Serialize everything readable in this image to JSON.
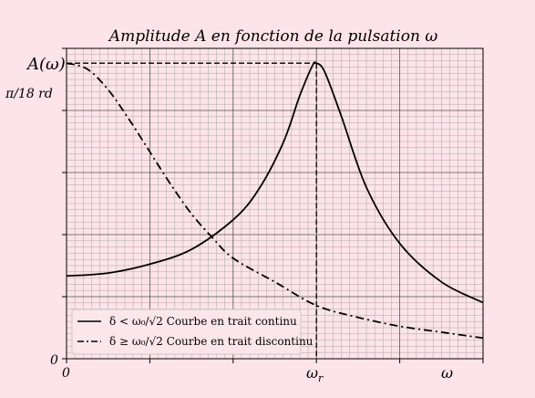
{
  "chart_data": {
    "type": "line",
    "title": "Amplitude A en fonction de la pulsation ω",
    "ylabel": "A(ω)",
    "xlabel": "ω",
    "y_reference_label": "π/18 rd",
    "y_origin_label": "0",
    "x_origin_label": "0",
    "x_resonance_label": "ω",
    "x_resonance_subscript": "r",
    "xlim": [
      0,
      5
    ],
    "ylim": [
      0,
      1.05
    ],
    "grid": true,
    "minor_grid": true,
    "legend_position": "bottom-left",
    "resonance": {
      "x": 3.0,
      "y": 1.0
    },
    "series": [
      {
        "name": "δ < ω₀/√2  Courbe en trait continu",
        "style": "solid",
        "x": [
          0,
          0.5,
          1.0,
          1.5,
          2.0,
          2.3,
          2.6,
          2.8,
          2.95,
          3.0,
          3.1,
          3.3,
          3.6,
          4.0,
          4.5,
          5.0
        ],
        "values": [
          0.28,
          0.29,
          0.32,
          0.37,
          0.47,
          0.57,
          0.73,
          0.89,
          0.99,
          1.0,
          0.97,
          0.82,
          0.58,
          0.39,
          0.26,
          0.19
        ]
      },
      {
        "name": "δ ≥ ω₀/√2  Courbe en trait discontinu",
        "style": "dashdot",
        "x": [
          0,
          0.25,
          0.5,
          0.75,
          1.0,
          1.25,
          1.5,
          1.75,
          2.0,
          2.5,
          3.0,
          3.5,
          4.0,
          4.5,
          5.0
        ],
        "values": [
          1.0,
          0.98,
          0.91,
          0.81,
          0.7,
          0.59,
          0.49,
          0.41,
          0.34,
          0.26,
          0.18,
          0.14,
          0.11,
          0.09,
          0.07
        ]
      }
    ]
  }
}
